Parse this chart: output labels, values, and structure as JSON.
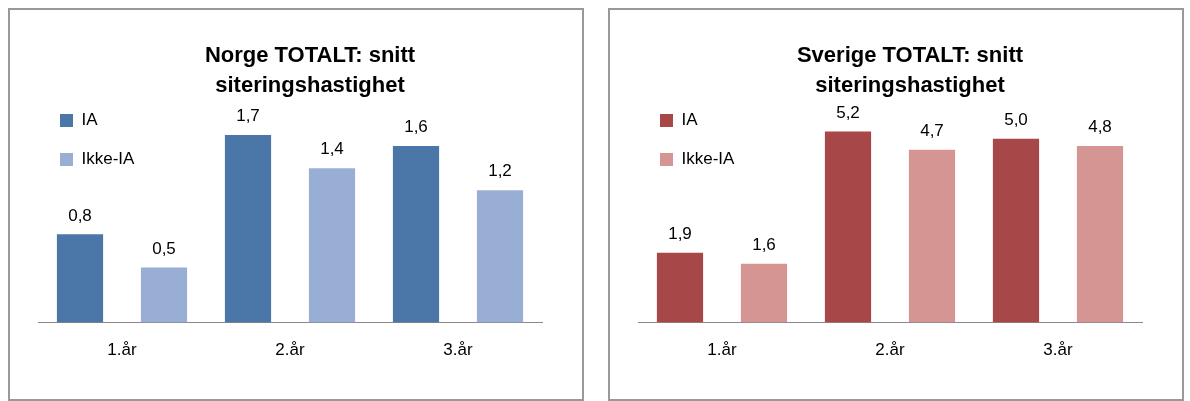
{
  "chart_data": [
    {
      "type": "bar",
      "title": "Norge TOTALT: snitt siteringshastighet",
      "categories": [
        "1.år",
        "2.år",
        "3.år"
      ],
      "series": [
        {
          "name": "IA",
          "color": "#4a76a8",
          "values": [
            0.8,
            1.7,
            1.6
          ],
          "value_labels": [
            "0,8",
            "1,7",
            "1,6"
          ]
        },
        {
          "name": "Ikke-IA",
          "color": "#98aed4",
          "values": [
            0.5,
            1.4,
            1.2
          ],
          "value_labels": [
            "0,5",
            "1,4",
            "1,2"
          ]
        }
      ],
      "tick_labels": "x",
      "legend": "top left",
      "grid": false
    },
    {
      "type": "bar",
      "title": "Sverige TOTALT: snitt siteringshastighet",
      "categories": [
        "1.år",
        "2.år",
        "3.år"
      ],
      "series": [
        {
          "name": "IA",
          "color": "#a84747",
          "values": [
            1.9,
            5.2,
            5.0
          ],
          "value_labels": [
            "1,9",
            "5,2",
            "5,0"
          ]
        },
        {
          "name": "Ikke-IA",
          "color": "#d49593",
          "values": [
            1.6,
            4.7,
            4.8
          ],
          "value_labels": [
            "1,6",
            "4,7",
            "4,8"
          ]
        }
      ],
      "tick_labels": "x",
      "legend": "top left",
      "grid": false
    }
  ]
}
